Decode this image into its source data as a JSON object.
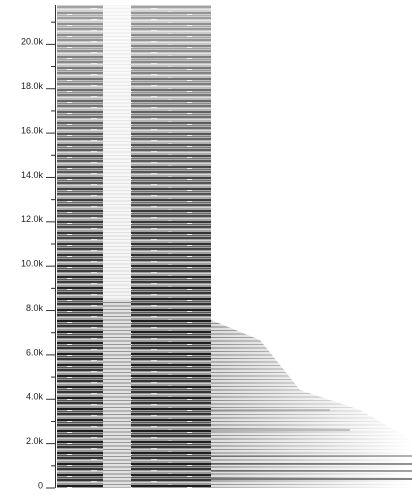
{
  "chart_data": {
    "type": "spectrogram",
    "ylim": [
      0,
      22000
    ],
    "yticks": [
      0,
      {
        "value": 2000,
        "label": "2.0k"
      },
      {
        "value": 4000,
        "label": "4.0k"
      },
      {
        "value": 6000,
        "label": "6.0k"
      },
      {
        "value": 8000,
        "label": "8.0k"
      },
      {
        "value": 10000,
        "label": "10.0k"
      },
      {
        "value": 12000,
        "label": "12.0k"
      },
      {
        "value": 14000,
        "label": "14.0k"
      },
      {
        "value": 16000,
        "label": "16.0k"
      },
      {
        "value": 18000,
        "label": "18.0k"
      },
      {
        "value": 20000,
        "label": "20.0k"
      }
    ],
    "yminorticks": [
      1000,
      3000,
      5000,
      7000,
      9000,
      11000,
      13000,
      15000,
      17000,
      19000,
      21000
    ]
  }
}
